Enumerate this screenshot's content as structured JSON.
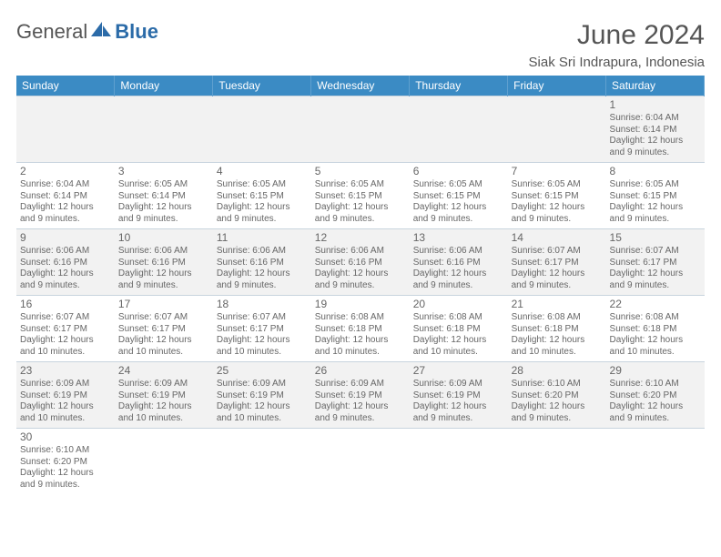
{
  "logo": {
    "textA": "General",
    "textB": "Blue"
  },
  "title": "June 2024",
  "location": "Siak Sri Indrapura, Indonesia",
  "dayHeaders": [
    "Sunday",
    "Monday",
    "Tuesday",
    "Wednesday",
    "Thursday",
    "Friday",
    "Saturday"
  ],
  "colors": {
    "headerBg": "#3b8bc4",
    "logoBlue": "#2b6ba8",
    "altRow": "#f2f2f2",
    "border": "#c8d4de"
  },
  "weeks": [
    [
      null,
      null,
      null,
      null,
      null,
      null,
      {
        "d": "1",
        "sr": "6:04 AM",
        "ss": "6:14 PM",
        "dl": "12 hours and 9 minutes."
      }
    ],
    [
      {
        "d": "2",
        "sr": "6:04 AM",
        "ss": "6:14 PM",
        "dl": "12 hours and 9 minutes."
      },
      {
        "d": "3",
        "sr": "6:05 AM",
        "ss": "6:14 PM",
        "dl": "12 hours and 9 minutes."
      },
      {
        "d": "4",
        "sr": "6:05 AM",
        "ss": "6:15 PM",
        "dl": "12 hours and 9 minutes."
      },
      {
        "d": "5",
        "sr": "6:05 AM",
        "ss": "6:15 PM",
        "dl": "12 hours and 9 minutes."
      },
      {
        "d": "6",
        "sr": "6:05 AM",
        "ss": "6:15 PM",
        "dl": "12 hours and 9 minutes."
      },
      {
        "d": "7",
        "sr": "6:05 AM",
        "ss": "6:15 PM",
        "dl": "12 hours and 9 minutes."
      },
      {
        "d": "8",
        "sr": "6:05 AM",
        "ss": "6:15 PM",
        "dl": "12 hours and 9 minutes."
      }
    ],
    [
      {
        "d": "9",
        "sr": "6:06 AM",
        "ss": "6:16 PM",
        "dl": "12 hours and 9 minutes."
      },
      {
        "d": "10",
        "sr": "6:06 AM",
        "ss": "6:16 PM",
        "dl": "12 hours and 9 minutes."
      },
      {
        "d": "11",
        "sr": "6:06 AM",
        "ss": "6:16 PM",
        "dl": "12 hours and 9 minutes."
      },
      {
        "d": "12",
        "sr": "6:06 AM",
        "ss": "6:16 PM",
        "dl": "12 hours and 9 minutes."
      },
      {
        "d": "13",
        "sr": "6:06 AM",
        "ss": "6:16 PM",
        "dl": "12 hours and 9 minutes."
      },
      {
        "d": "14",
        "sr": "6:07 AM",
        "ss": "6:17 PM",
        "dl": "12 hours and 9 minutes."
      },
      {
        "d": "15",
        "sr": "6:07 AM",
        "ss": "6:17 PM",
        "dl": "12 hours and 9 minutes."
      }
    ],
    [
      {
        "d": "16",
        "sr": "6:07 AM",
        "ss": "6:17 PM",
        "dl": "12 hours and 10 minutes."
      },
      {
        "d": "17",
        "sr": "6:07 AM",
        "ss": "6:17 PM",
        "dl": "12 hours and 10 minutes."
      },
      {
        "d": "18",
        "sr": "6:07 AM",
        "ss": "6:17 PM",
        "dl": "12 hours and 10 minutes."
      },
      {
        "d": "19",
        "sr": "6:08 AM",
        "ss": "6:18 PM",
        "dl": "12 hours and 10 minutes."
      },
      {
        "d": "20",
        "sr": "6:08 AM",
        "ss": "6:18 PM",
        "dl": "12 hours and 10 minutes."
      },
      {
        "d": "21",
        "sr": "6:08 AM",
        "ss": "6:18 PM",
        "dl": "12 hours and 10 minutes."
      },
      {
        "d": "22",
        "sr": "6:08 AM",
        "ss": "6:18 PM",
        "dl": "12 hours and 10 minutes."
      }
    ],
    [
      {
        "d": "23",
        "sr": "6:09 AM",
        "ss": "6:19 PM",
        "dl": "12 hours and 10 minutes."
      },
      {
        "d": "24",
        "sr": "6:09 AM",
        "ss": "6:19 PM",
        "dl": "12 hours and 10 minutes."
      },
      {
        "d": "25",
        "sr": "6:09 AM",
        "ss": "6:19 PM",
        "dl": "12 hours and 10 minutes."
      },
      {
        "d": "26",
        "sr": "6:09 AM",
        "ss": "6:19 PM",
        "dl": "12 hours and 9 minutes."
      },
      {
        "d": "27",
        "sr": "6:09 AM",
        "ss": "6:19 PM",
        "dl": "12 hours and 9 minutes."
      },
      {
        "d": "28",
        "sr": "6:10 AM",
        "ss": "6:20 PM",
        "dl": "12 hours and 9 minutes."
      },
      {
        "d": "29",
        "sr": "6:10 AM",
        "ss": "6:20 PM",
        "dl": "12 hours and 9 minutes."
      }
    ],
    [
      {
        "d": "30",
        "sr": "6:10 AM",
        "ss": "6:20 PM",
        "dl": "12 hours and 9 minutes."
      },
      null,
      null,
      null,
      null,
      null,
      null
    ]
  ],
  "labels": {
    "sunrise": "Sunrise: ",
    "sunset": "Sunset: ",
    "daylight": "Daylight: "
  }
}
